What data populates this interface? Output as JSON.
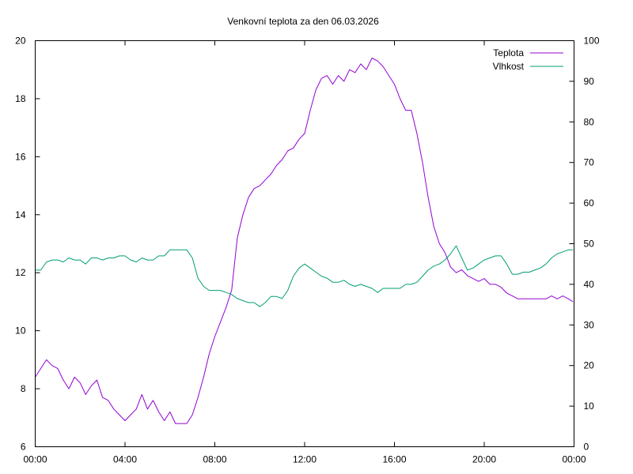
{
  "chart_data": {
    "type": "line",
    "title": "Venkovní teplota za den 06.03.2026",
    "xlabel": "",
    "ylabel": "",
    "y2label": "",
    "x_range": [
      0,
      24
    ],
    "ylim": [
      6,
      20
    ],
    "y2lim": [
      0,
      100
    ],
    "x_ticks": [
      0,
      4,
      8,
      12,
      16,
      20,
      24
    ],
    "x_tick_labels": [
      "00:00",
      "04:00",
      "08:00",
      "12:00",
      "16:00",
      "20:00",
      "00:00"
    ],
    "y_ticks": [
      6,
      8,
      10,
      12,
      14,
      16,
      18,
      20
    ],
    "y_tick_labels": [
      "6",
      "8",
      "10",
      "12",
      "14",
      "16",
      "18",
      "20"
    ],
    "y2_ticks": [
      0,
      10,
      20,
      30,
      40,
      50,
      60,
      70,
      80,
      90,
      100
    ],
    "y2_tick_labels": [
      "0",
      "10",
      "20",
      "30",
      "40",
      "50",
      "60",
      "70",
      "80",
      "90",
      "100"
    ],
    "grid": false,
    "legend_position": "top-right",
    "series": [
      {
        "name": "Teplota",
        "axis": "left",
        "color": "#9400d3",
        "x": [
          0,
          0.25,
          0.5,
          0.75,
          1.0,
          1.25,
          1.5,
          1.75,
          2.0,
          2.25,
          2.5,
          2.75,
          3.0,
          3.25,
          3.5,
          3.75,
          4.0,
          4.25,
          4.5,
          4.75,
          5.0,
          5.25,
          5.5,
          5.75,
          6.0,
          6.25,
          6.5,
          6.75,
          7.0,
          7.25,
          7.5,
          7.75,
          8.0,
          8.25,
          8.5,
          8.75,
          9.0,
          9.25,
          9.5,
          9.75,
          10.0,
          10.25,
          10.5,
          10.75,
          11.0,
          11.25,
          11.5,
          11.75,
          12.0,
          12.25,
          12.5,
          12.75,
          13.0,
          13.25,
          13.5,
          13.75,
          14.0,
          14.25,
          14.5,
          14.75,
          15.0,
          15.25,
          15.5,
          15.75,
          16.0,
          16.25,
          16.5,
          16.75,
          17.0,
          17.25,
          17.5,
          17.75,
          18.0,
          18.25,
          18.5,
          18.75,
          19.0,
          19.25,
          19.5,
          19.75,
          20.0,
          20.25,
          20.5,
          20.75,
          21.0,
          21.25,
          21.5,
          21.75,
          22.0,
          22.25,
          22.5,
          22.75,
          23.0,
          23.25,
          23.5,
          23.75,
          23.95
        ],
        "values": [
          8.4,
          8.7,
          9.0,
          8.8,
          8.7,
          8.3,
          8.0,
          8.4,
          8.2,
          7.8,
          8.1,
          8.3,
          7.7,
          7.6,
          7.3,
          7.1,
          6.9,
          7.1,
          7.3,
          7.8,
          7.3,
          7.6,
          7.2,
          6.9,
          7.2,
          6.8,
          6.8,
          6.8,
          7.1,
          7.7,
          8.4,
          9.2,
          9.8,
          10.3,
          10.8,
          11.4,
          13.2,
          14.0,
          14.6,
          14.9,
          15.0,
          15.2,
          15.4,
          15.7,
          15.9,
          16.2,
          16.3,
          16.6,
          16.8,
          17.6,
          18.3,
          18.7,
          18.8,
          18.5,
          18.8,
          18.6,
          19.0,
          18.9,
          19.2,
          19.0,
          19.4,
          19.3,
          19.1,
          18.8,
          18.5,
          18.0,
          17.6,
          17.6,
          16.8,
          15.8,
          14.6,
          13.6,
          13.0,
          12.7,
          12.2,
          12.0,
          12.1,
          11.9,
          11.8,
          11.7,
          11.8,
          11.6,
          11.6,
          11.5,
          11.3,
          11.2,
          11.1,
          11.1,
          11.1,
          11.1,
          11.1,
          11.1,
          11.2,
          11.1,
          11.2,
          11.1,
          11.0
        ]
      },
      {
        "name": "Vlhkost",
        "axis": "right",
        "color": "#009e73",
        "x": [
          0,
          0.25,
          0.5,
          0.75,
          1.0,
          1.25,
          1.5,
          1.75,
          2.0,
          2.25,
          2.5,
          2.75,
          3.0,
          3.25,
          3.5,
          3.75,
          4.0,
          4.25,
          4.5,
          4.75,
          5.0,
          5.25,
          5.5,
          5.75,
          6.0,
          6.25,
          6.5,
          6.75,
          7.0,
          7.25,
          7.5,
          7.75,
          8.0,
          8.25,
          8.5,
          8.75,
          9.0,
          9.25,
          9.5,
          9.75,
          10.0,
          10.25,
          10.5,
          10.75,
          11.0,
          11.25,
          11.5,
          11.75,
          12.0,
          12.25,
          12.5,
          12.75,
          13.0,
          13.25,
          13.5,
          13.75,
          14.0,
          14.25,
          14.5,
          14.75,
          15.0,
          15.25,
          15.5,
          15.75,
          16.0,
          16.25,
          16.5,
          16.75,
          17.0,
          17.25,
          17.5,
          17.75,
          18.0,
          18.25,
          18.5,
          18.75,
          19.0,
          19.25,
          19.5,
          19.75,
          20.0,
          20.25,
          20.5,
          20.75,
          21.0,
          21.25,
          21.5,
          21.75,
          22.0,
          22.25,
          22.5,
          22.75,
          23.0,
          23.25,
          23.5,
          23.75,
          23.95
        ],
        "values": [
          43.5,
          43.5,
          45.5,
          46.0,
          46.0,
          45.5,
          46.5,
          46.0,
          46.0,
          45.0,
          46.5,
          46.5,
          46.0,
          46.5,
          46.5,
          47.0,
          47.0,
          46.0,
          45.5,
          46.5,
          46.0,
          46.0,
          47.0,
          47.0,
          48.5,
          48.5,
          48.5,
          48.5,
          46.5,
          41.5,
          39.5,
          38.5,
          38.5,
          38.5,
          38.0,
          37.5,
          36.5,
          36.0,
          35.5,
          35.5,
          34.5,
          35.5,
          37.0,
          37.0,
          36.5,
          38.5,
          42.0,
          44.0,
          45.0,
          44.0,
          43.0,
          42.0,
          41.5,
          40.5,
          40.5,
          41.0,
          40.0,
          39.5,
          40.0,
          39.5,
          39.0,
          38.0,
          39.0,
          39.0,
          39.0,
          39.0,
          40.0,
          40.0,
          40.5,
          42.0,
          43.5,
          44.5,
          45.0,
          46.0,
          47.5,
          49.5,
          46.5,
          43.5,
          44.0,
          45.0,
          46.0,
          46.5,
          47.0,
          47.0,
          45.0,
          42.5,
          42.5,
          43.0,
          43.0,
          43.5,
          44.0,
          45.0,
          46.5,
          47.5,
          48.0,
          48.5,
          48.5
        ]
      }
    ]
  }
}
